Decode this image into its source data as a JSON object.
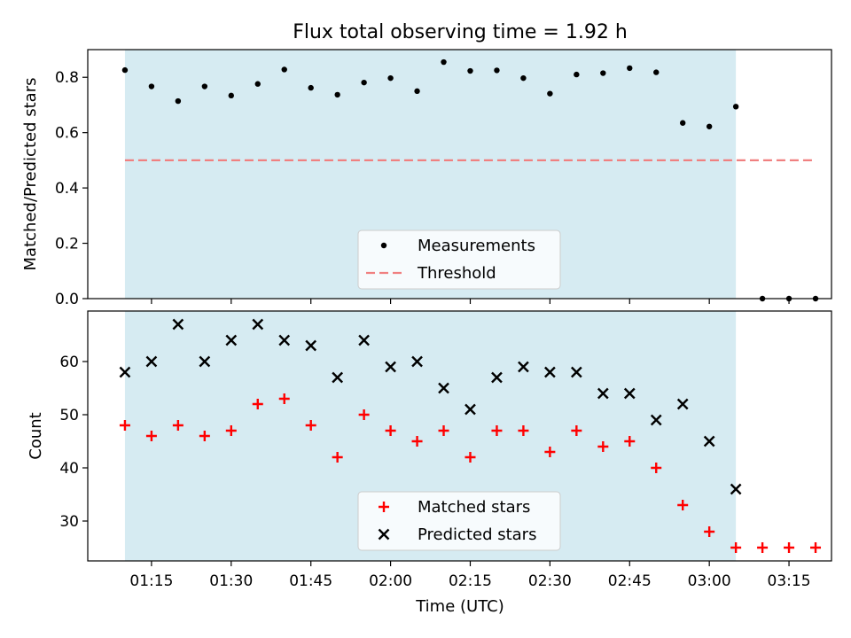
{
  "figure": {
    "title": "Flux total observing time = 1.92 h",
    "xlabel": "Time (UTC)"
  },
  "colors": {
    "shade": "#add8e6",
    "threshold": "#f08080",
    "matched": "#ff0000",
    "predicted": "#000000",
    "measurement": "#000000"
  },
  "chart_data": [
    {
      "type": "scatter",
      "title": "Flux total observing time = 1.92 h",
      "ylabel": "Matched/Predicted stars",
      "xlim": [
        "01:03",
        "03:23"
      ],
      "ylim": [
        0,
        0.9
      ],
      "yticks": [
        0.0,
        0.2,
        0.4,
        0.6,
        0.8
      ],
      "ytick_labels": [
        "0.0",
        "0.2",
        "0.4",
        "0.6",
        "0.8"
      ],
      "xticks": [
        "01:15",
        "01:30",
        "01:45",
        "02:00",
        "02:15",
        "02:30",
        "02:45",
        "03:00",
        "03:15"
      ],
      "shaded_region": [
        "01:10",
        "03:05"
      ],
      "legend_position": "lower center",
      "x": [
        "01:10",
        "01:15",
        "01:20",
        "01:25",
        "01:30",
        "01:35",
        "01:40",
        "01:45",
        "01:50",
        "01:55",
        "02:00",
        "02:05",
        "02:10",
        "02:15",
        "02:20",
        "02:25",
        "02:30",
        "02:35",
        "02:40",
        "02:45",
        "02:50",
        "02:55",
        "03:00",
        "03:05",
        "03:10",
        "03:15",
        "03:20"
      ],
      "series": [
        {
          "name": "Measurements",
          "marker": "dot",
          "values": [
            0.826,
            0.767,
            0.714,
            0.767,
            0.734,
            0.776,
            0.828,
            0.762,
            0.737,
            0.781,
            0.797,
            0.75,
            0.855,
            0.823,
            0.825,
            0.797,
            0.741,
            0.81,
            0.815,
            0.833,
            0.818,
            0.635,
            0.622,
            0.694,
            0.0,
            0.0,
            0.0
          ]
        },
        {
          "name": "Threshold",
          "style": "dashed line",
          "x": [
            "01:10",
            "03:20"
          ],
          "values": [
            0.5,
            0.5
          ]
        }
      ]
    },
    {
      "type": "scatter",
      "ylabel": "Count",
      "xlabel": "Time (UTC)",
      "xlim": [
        "01:03",
        "03:23"
      ],
      "ylim": [
        22.5,
        69.5
      ],
      "yticks": [
        30,
        40,
        50,
        60
      ],
      "xticks": [
        "01:15",
        "01:30",
        "01:45",
        "02:00",
        "02:15",
        "02:30",
        "02:45",
        "03:00",
        "03:15"
      ],
      "shaded_region": [
        "01:10",
        "03:05"
      ],
      "legend_position": "lower center",
      "x": [
        "01:10",
        "01:15",
        "01:20",
        "01:25",
        "01:30",
        "01:35",
        "01:40",
        "01:45",
        "01:50",
        "01:55",
        "02:00",
        "02:05",
        "02:10",
        "02:15",
        "02:20",
        "02:25",
        "02:30",
        "02:35",
        "02:40",
        "02:45",
        "02:50",
        "02:55",
        "03:00",
        "03:05",
        "03:10",
        "03:15",
        "03:20"
      ],
      "series": [
        {
          "name": "Matched stars",
          "marker": "plus",
          "values": [
            48,
            46,
            48,
            46,
            47,
            52,
            53,
            48,
            42,
            50,
            47,
            45,
            47,
            42,
            47,
            47,
            43,
            47,
            44,
            45,
            40,
            33,
            28,
            25,
            25,
            25,
            25
          ]
        },
        {
          "name": "Predicted stars",
          "marker": "x",
          "values": [
            58,
            60,
            67,
            60,
            64,
            67,
            64,
            63,
            57,
            64,
            59,
            60,
            55,
            51,
            57,
            59,
            58,
            58,
            54,
            54,
            49,
            52,
            45,
            36,
            null,
            null,
            null
          ]
        }
      ]
    }
  ]
}
